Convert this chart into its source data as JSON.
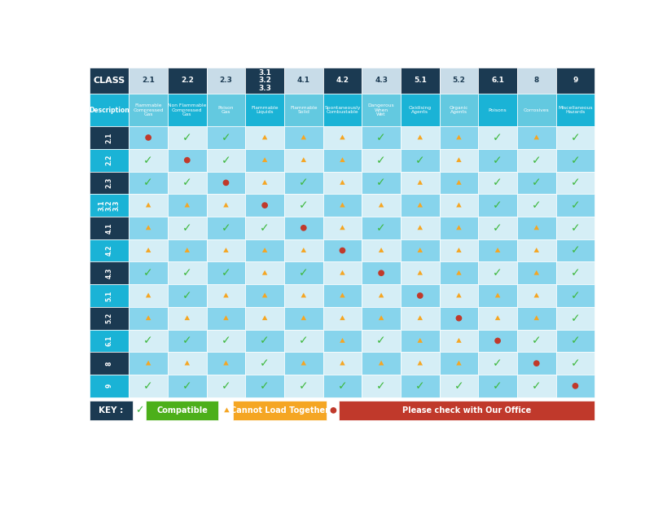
{
  "col_headers": [
    "2.1",
    "2.2",
    "2.3",
    "3.1\n3.2\n3.3",
    "4.1",
    "4.2",
    "4.3",
    "5.1",
    "5.2",
    "6.1",
    "8",
    "9"
  ],
  "col_descriptions": [
    "Flammable\nCompressed\nGas",
    "Non Flammable\nCompressed\nGas",
    "Poison\nGas",
    "Flammable\nLiquids",
    "Flammable\nSolid",
    "Spontaneously\nCombustable",
    "Dangerous\nWhen\nWet",
    "Oxidising\nAgents",
    "Organic\nAgents",
    "Poisons",
    "Corrosives",
    "Miscellaneous\nHazards"
  ],
  "row_labels": [
    "2.1",
    "2.2",
    "2.3",
    "3.1\n3.2\n3.3",
    "4.1",
    "4.2",
    "4.3",
    "5.1",
    "5.2",
    "6.1",
    "8",
    "9"
  ],
  "grid": [
    [
      "R",
      "G",
      "G",
      "A",
      "A",
      "A",
      "G",
      "A",
      "A",
      "G",
      "A",
      "G"
    ],
    [
      "G",
      "R",
      "G",
      "A",
      "A",
      "A",
      "G",
      "G",
      "A",
      "G",
      "G",
      "G"
    ],
    [
      "G",
      "G",
      "R",
      "A",
      "G",
      "A",
      "G",
      "A",
      "A",
      "G",
      "G",
      "G"
    ],
    [
      "A",
      "A",
      "A",
      "R",
      "G",
      "A",
      "A",
      "A",
      "A",
      "G",
      "G",
      "G"
    ],
    [
      "A",
      "G",
      "G",
      "G",
      "R",
      "A",
      "G",
      "A",
      "A",
      "G",
      "A",
      "G"
    ],
    [
      "A",
      "A",
      "A",
      "A",
      "A",
      "R",
      "A",
      "A",
      "A",
      "A",
      "A",
      "G"
    ],
    [
      "G",
      "G",
      "G",
      "A",
      "G",
      "A",
      "R",
      "A",
      "A",
      "G",
      "A",
      "G"
    ],
    [
      "A",
      "G",
      "A",
      "A",
      "A",
      "A",
      "A",
      "R",
      "A",
      "A",
      "A",
      "G"
    ],
    [
      "A",
      "A",
      "A",
      "A",
      "A",
      "A",
      "A",
      "A",
      "R",
      "A",
      "A",
      "G"
    ],
    [
      "G",
      "G",
      "G",
      "G",
      "G",
      "A",
      "G",
      "A",
      "A",
      "R",
      "G",
      "G"
    ],
    [
      "A",
      "A",
      "A",
      "G",
      "A",
      "A",
      "A",
      "A",
      "A",
      "G",
      "R",
      "G"
    ],
    [
      "G",
      "G",
      "G",
      "G",
      "G",
      "G",
      "G",
      "G",
      "G",
      "G",
      "G",
      "R"
    ]
  ],
  "header_dark": "#1b3a52",
  "header_medium": "#2e6d8e",
  "header_light_gray": "#c8dce8",
  "desc_dark_blue": "#1ab3d6",
  "desc_light_blue": "#63c9e0",
  "row_label_dark": "#1b3a52",
  "row_label_cyan": "#1ab3d6",
  "cell_blue": "#87d4ec",
  "cell_light": "#d5eef6",
  "cell_gray": "#c8dce8",
  "cell_white": "#e8f4f8",
  "green_color": "#3eb83e",
  "orange_color": "#f5a623",
  "red_color": "#c0392b",
  "key_bg": "#1b3a52",
  "compatible_bg": "#4caf1a",
  "cannot_bg": "#f5a623",
  "check_bg": "#c0392b",
  "bg_color": "#ffffff"
}
